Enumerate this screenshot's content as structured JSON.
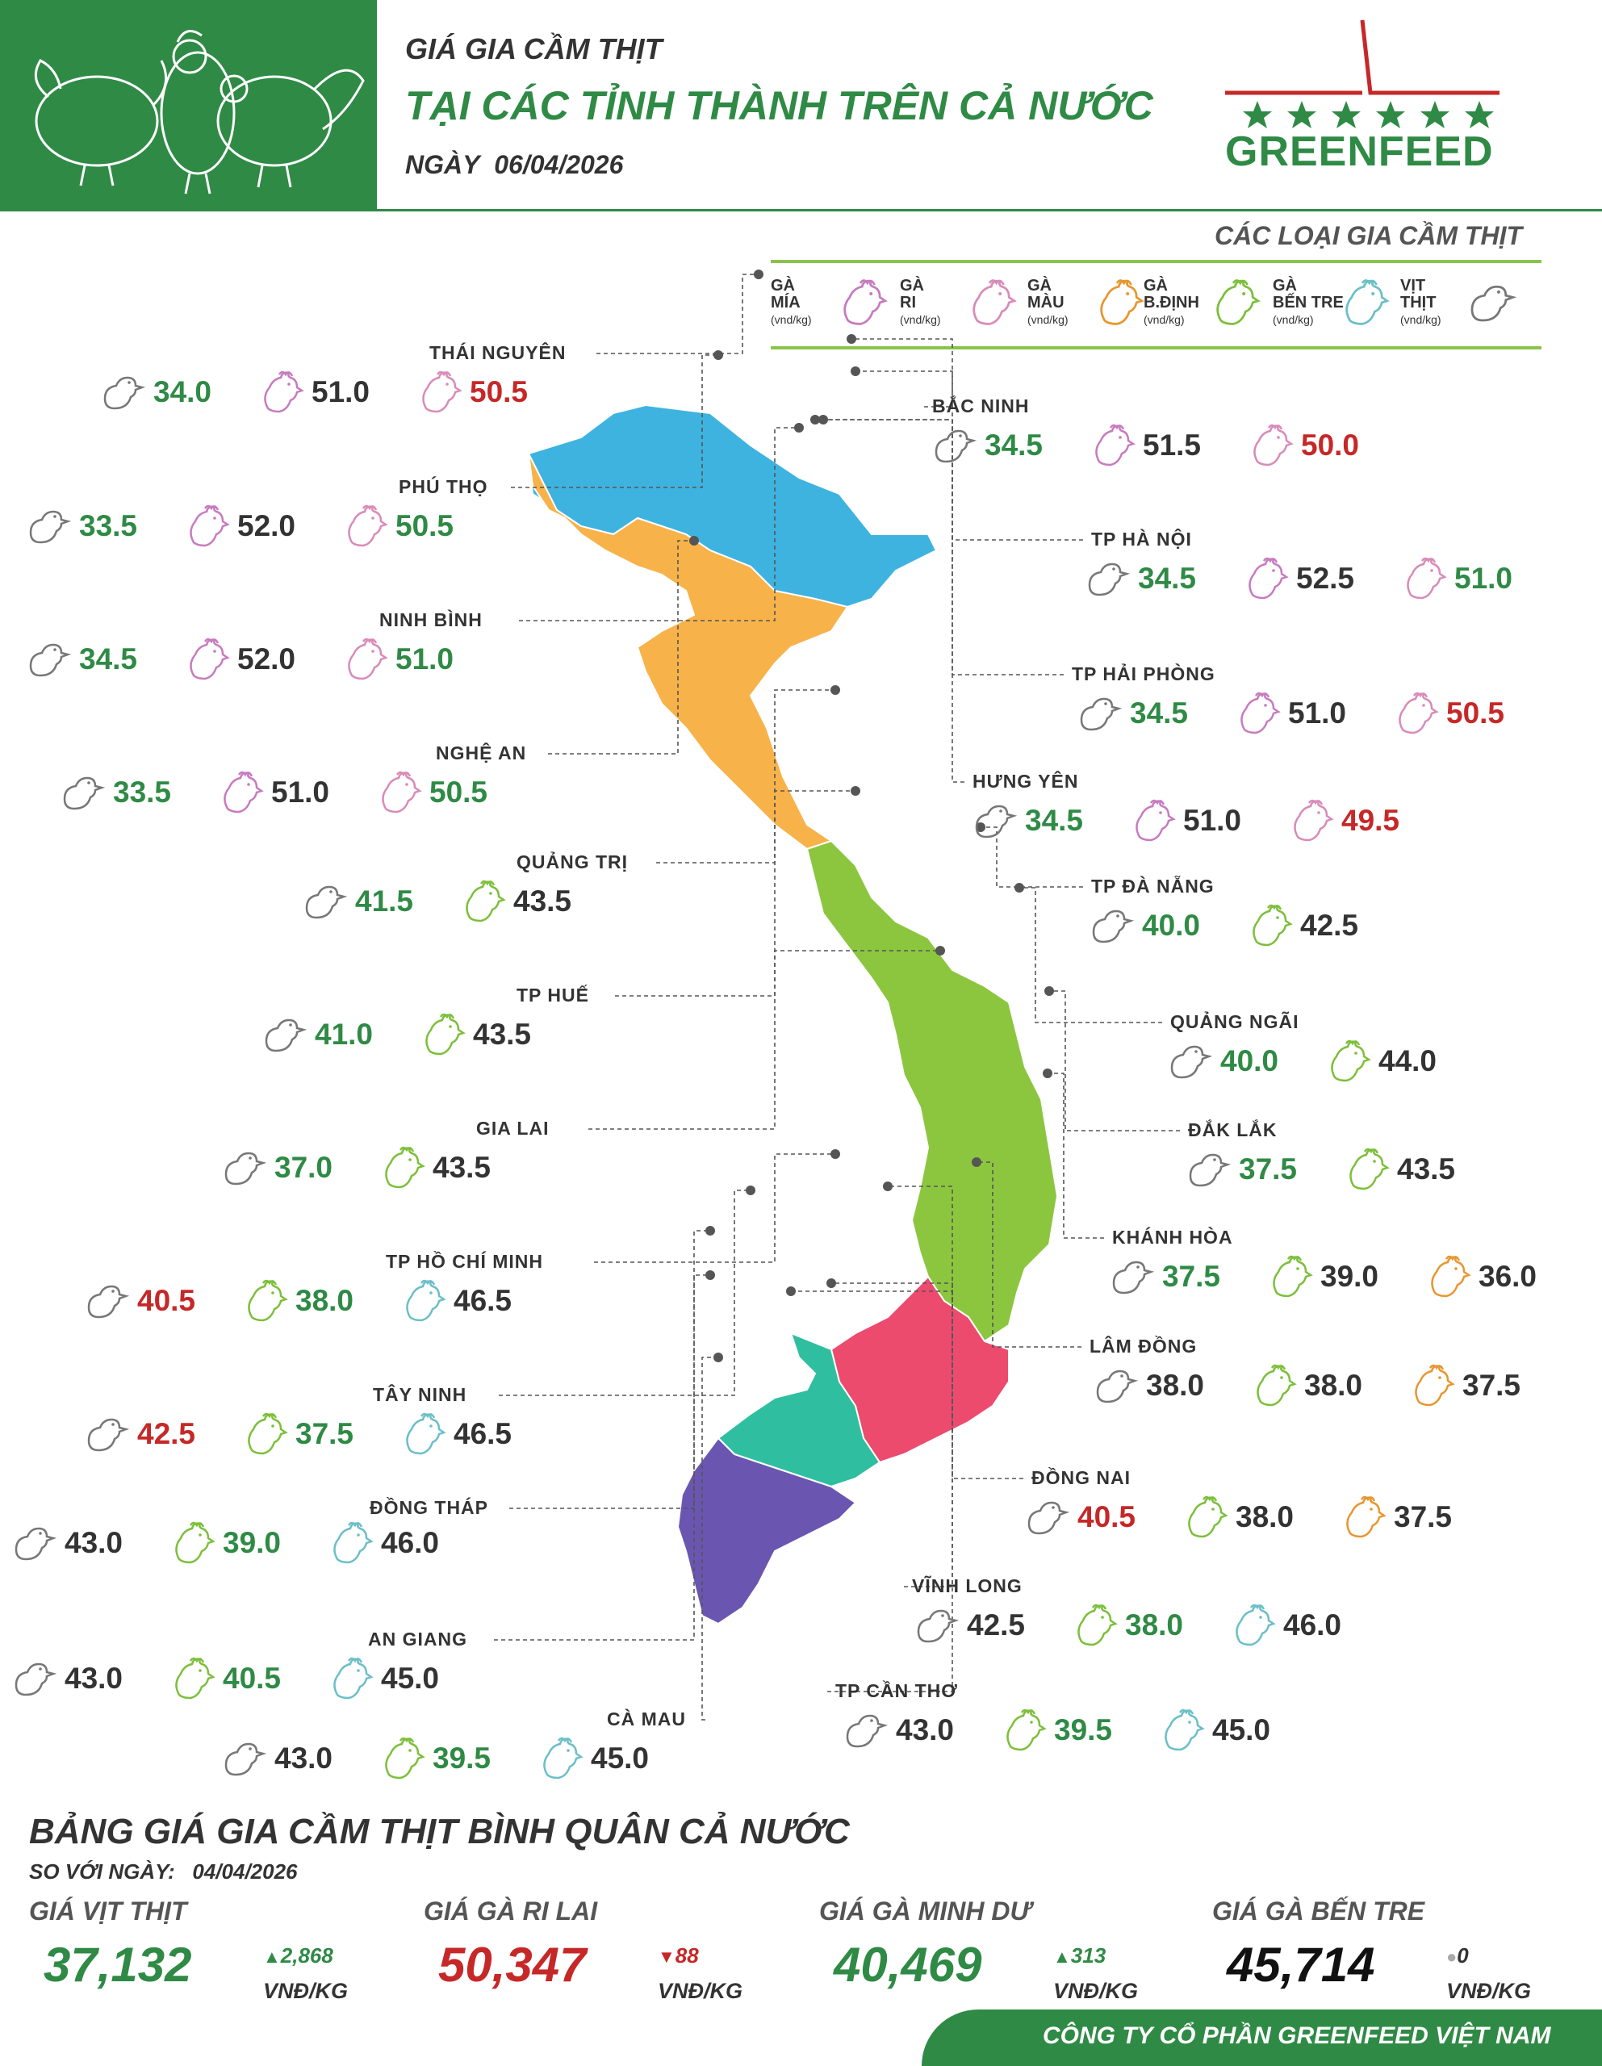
{
  "header": {
    "title_small": "GIÁ GIA CẦM THỊT",
    "title_large": "TẠI CÁC TỈNH THÀNH TRÊN CẢ NƯỚC",
    "date_label": "NGÀY",
    "date_value": "06/04/2026",
    "logo_text": "GREENFEED"
  },
  "legend": {
    "title": "CÁC LOẠI GIA CẦM THỊT",
    "items": [
      {
        "name": "GÀ\nMÍA",
        "unit": "(vnd/kg)",
        "icon": "rooster-mia-icon",
        "color": "#c77bbf"
      },
      {
        "name": "GÀ\nRI",
        "unit": "(vnd/kg)",
        "icon": "rooster-ri-icon",
        "color": "#d98bb8"
      },
      {
        "name": "GÀ\nMÀU",
        "unit": "(vnd/kg)",
        "icon": "rooster-mau-icon",
        "color": "#e8962f"
      },
      {
        "name": "GÀ\nB.ĐỊNH",
        "unit": "(vnd/kg)",
        "icon": "rooster-bdinh-icon",
        "color": "#7cbf3a"
      },
      {
        "name": "GÀ\nBẾN TRE",
        "unit": "(vnd/kg)",
        "icon": "rooster-bentre-icon",
        "color": "#6bbfc7"
      },
      {
        "name": "VỊT\nTHỊT",
        "unit": "(vnd/kg)",
        "icon": "duck-icon",
        "color": "#777777"
      }
    ]
  },
  "colors": {
    "green": "#2f8a45",
    "red": "#c62828",
    "dark": "#333333",
    "north": "#3fb3e0",
    "north_central": "#f7b24a",
    "central": "#8cc63f",
    "southeast": "#ec4b6e",
    "southwest": "#2fbfa0",
    "mekong": "#6a55b0"
  },
  "provinces": [
    {
      "name": "THÁI NGUYÊN",
      "prices": [
        {
          "icon": "duck-icon",
          "value": "34.0",
          "color": "green"
        },
        {
          "icon": "rooster-mia-icon",
          "value": "51.0",
          "color": "dark"
        },
        {
          "icon": "rooster-ri-icon",
          "value": "50.5",
          "color": "red"
        }
      ]
    },
    {
      "name": "PHÚ THỌ",
      "prices": [
        {
          "icon": "duck-icon",
          "value": "33.5",
          "color": "green"
        },
        {
          "icon": "rooster-mia-icon",
          "value": "52.0",
          "color": "dark"
        },
        {
          "icon": "rooster-ri-icon",
          "value": "50.5",
          "color": "green"
        }
      ]
    },
    {
      "name": "NINH BÌNH",
      "prices": [
        {
          "icon": "duck-icon",
          "value": "34.5",
          "color": "green"
        },
        {
          "icon": "rooster-mia-icon",
          "value": "52.0",
          "color": "dark"
        },
        {
          "icon": "rooster-ri-icon",
          "value": "51.0",
          "color": "green"
        }
      ]
    },
    {
      "name": "NGHỆ AN",
      "prices": [
        {
          "icon": "duck-icon",
          "value": "33.5",
          "color": "green"
        },
        {
          "icon": "rooster-mia-icon",
          "value": "51.0",
          "color": "dark"
        },
        {
          "icon": "rooster-ri-icon",
          "value": "50.5",
          "color": "green"
        }
      ]
    },
    {
      "name": "QUẢNG TRỊ",
      "prices": [
        {
          "icon": "duck-icon",
          "value": "41.5",
          "color": "green"
        },
        {
          "icon": "rooster-bdinh-icon",
          "value": "43.5",
          "color": "dark"
        }
      ]
    },
    {
      "name": "TP HUẾ",
      "prices": [
        {
          "icon": "duck-icon",
          "value": "41.0",
          "color": "green"
        },
        {
          "icon": "rooster-bdinh-icon",
          "value": "43.5",
          "color": "dark"
        }
      ]
    },
    {
      "name": "GIA LAI",
      "prices": [
        {
          "icon": "duck-icon",
          "value": "37.0",
          "color": "green"
        },
        {
          "icon": "rooster-bdinh-icon",
          "value": "43.5",
          "color": "dark"
        }
      ]
    },
    {
      "name": "TP HỒ CHÍ MINH",
      "prices": [
        {
          "icon": "duck-icon",
          "value": "40.5",
          "color": "red"
        },
        {
          "icon": "rooster-bdinh-icon",
          "value": "38.0",
          "color": "green"
        },
        {
          "icon": "rooster-bentre-icon",
          "value": "46.5",
          "color": "dark"
        }
      ]
    },
    {
      "name": "TÂY NINH",
      "prices": [
        {
          "icon": "duck-icon",
          "value": "42.5",
          "color": "red"
        },
        {
          "icon": "rooster-bdinh-icon",
          "value": "37.5",
          "color": "green"
        },
        {
          "icon": "rooster-bentre-icon",
          "value": "46.5",
          "color": "dark"
        }
      ]
    },
    {
      "name": "ĐỒNG THÁP",
      "prices": [
        {
          "icon": "duck-icon",
          "value": "43.0",
          "color": "dark"
        },
        {
          "icon": "rooster-bdinh-icon",
          "value": "39.0",
          "color": "green"
        },
        {
          "icon": "rooster-bentre-icon",
          "value": "46.0",
          "color": "dark"
        }
      ]
    },
    {
      "name": "AN GIANG",
      "prices": [
        {
          "icon": "duck-icon",
          "value": "43.0",
          "color": "dark"
        },
        {
          "icon": "rooster-bdinh-icon",
          "value": "40.5",
          "color": "green"
        },
        {
          "icon": "rooster-bentre-icon",
          "value": "45.0",
          "color": "dark"
        }
      ]
    },
    {
      "name": "CÀ MAU",
      "prices": [
        {
          "icon": "duck-icon",
          "value": "43.0",
          "color": "dark"
        },
        {
          "icon": "rooster-bdinh-icon",
          "value": "39.5",
          "color": "green"
        },
        {
          "icon": "rooster-bentre-icon",
          "value": "45.0",
          "color": "dark"
        }
      ]
    },
    {
      "name": "BẮC NINH",
      "prices": [
        {
          "icon": "duck-icon",
          "value": "34.5",
          "color": "green"
        },
        {
          "icon": "rooster-mia-icon",
          "value": "51.5",
          "color": "dark"
        },
        {
          "icon": "rooster-ri-icon",
          "value": "50.0",
          "color": "red"
        }
      ]
    },
    {
      "name": "TP HÀ NỘI",
      "prices": [
        {
          "icon": "duck-icon",
          "value": "34.5",
          "color": "green"
        },
        {
          "icon": "rooster-mia-icon",
          "value": "52.5",
          "color": "dark"
        },
        {
          "icon": "rooster-ri-icon",
          "value": "51.0",
          "color": "green"
        }
      ]
    },
    {
      "name": "TP HẢI PHÒNG",
      "prices": [
        {
          "icon": "duck-icon",
          "value": "34.5",
          "color": "green"
        },
        {
          "icon": "rooster-mia-icon",
          "value": "51.0",
          "color": "dark"
        },
        {
          "icon": "rooster-ri-icon",
          "value": "50.5",
          "color": "red"
        }
      ]
    },
    {
      "name": "HƯNG YÊN",
      "prices": [
        {
          "icon": "duck-icon",
          "value": "34.5",
          "color": "green"
        },
        {
          "icon": "rooster-mia-icon",
          "value": "51.0",
          "color": "dark"
        },
        {
          "icon": "rooster-ri-icon",
          "value": "49.5",
          "color": "red"
        }
      ]
    },
    {
      "name": "TP ĐÀ NẴNG",
      "prices": [
        {
          "icon": "duck-icon",
          "value": "40.0",
          "color": "green"
        },
        {
          "icon": "rooster-bdinh-icon",
          "value": "42.5",
          "color": "dark"
        }
      ]
    },
    {
      "name": "QUẢNG NGÃI",
      "prices": [
        {
          "icon": "duck-icon",
          "value": "40.0",
          "color": "green"
        },
        {
          "icon": "rooster-bdinh-icon",
          "value": "44.0",
          "color": "dark"
        }
      ]
    },
    {
      "name": "ĐẮK LẮK",
      "prices": [
        {
          "icon": "duck-icon",
          "value": "37.5",
          "color": "green"
        },
        {
          "icon": "rooster-bdinh-icon",
          "value": "43.5",
          "color": "dark"
        }
      ]
    },
    {
      "name": "KHÁNH HÒA",
      "prices": [
        {
          "icon": "duck-icon",
          "value": "37.5",
          "color": "green"
        },
        {
          "icon": "rooster-bdinh-icon",
          "value": "39.0",
          "color": "dark"
        },
        {
          "icon": "rooster-mau-icon",
          "value": "36.0",
          "color": "dark"
        }
      ]
    },
    {
      "name": "LÂM ĐỒNG",
      "prices": [
        {
          "icon": "duck-icon",
          "value": "38.0",
          "color": "dark"
        },
        {
          "icon": "rooster-bdinh-icon",
          "value": "38.0",
          "color": "dark"
        },
        {
          "icon": "rooster-mau-icon",
          "value": "37.5",
          "color": "dark"
        }
      ]
    },
    {
      "name": "ĐỒNG NAI",
      "prices": [
        {
          "icon": "duck-icon",
          "value": "40.5",
          "color": "red"
        },
        {
          "icon": "rooster-bdinh-icon",
          "value": "38.0",
          "color": "dark"
        },
        {
          "icon": "rooster-mau-icon",
          "value": "37.5",
          "color": "dark"
        }
      ]
    },
    {
      "name": "VĨNH LONG",
      "prices": [
        {
          "icon": "duck-icon",
          "value": "42.5",
          "color": "dark"
        },
        {
          "icon": "rooster-bdinh-icon",
          "value": "38.0",
          "color": "green"
        },
        {
          "icon": "rooster-bentre-icon",
          "value": "46.0",
          "color": "dark"
        }
      ]
    },
    {
      "name": "TP CẦN THƠ",
      "prices": [
        {
          "icon": "duck-icon",
          "value": "43.0",
          "color": "dark"
        },
        {
          "icon": "rooster-bdinh-icon",
          "value": "39.5",
          "color": "green"
        },
        {
          "icon": "rooster-bentre-icon",
          "value": "45.0",
          "color": "dark"
        }
      ]
    }
  ],
  "average": {
    "title": "BẢNG GIÁ GIA CẦM THỊT BÌNH QUÂN CẢ NƯỚC",
    "compare_label": "SO VỚI NGÀY:",
    "compare_date": "04/04/2026",
    "items": [
      {
        "label": "GIÁ VỊT THỊT",
        "value": "37,132",
        "change": "2,868",
        "direction": "up",
        "unit": "VNĐ/KG",
        "color": "#2f8a45"
      },
      {
        "label": "GIÁ GÀ RI LAI",
        "value": "50,347",
        "change": "88",
        "direction": "down",
        "unit": "VNĐ/KG",
        "color": "#c62828"
      },
      {
        "label": "GIÁ GÀ MINH DƯ",
        "value": "40,469",
        "change": "313",
        "direction": "up",
        "unit": "VNĐ/KG",
        "color": "#2f8a45"
      },
      {
        "label": "GIÁ GÀ BẾN TRE",
        "value": "45,714",
        "change": "0",
        "direction": "flat",
        "unit": "VNĐ/KG",
        "color": "#111111"
      }
    ]
  },
  "footer": {
    "company": "CÔNG TY CỔ PHẦN GREENFEED VIỆT NAM"
  }
}
